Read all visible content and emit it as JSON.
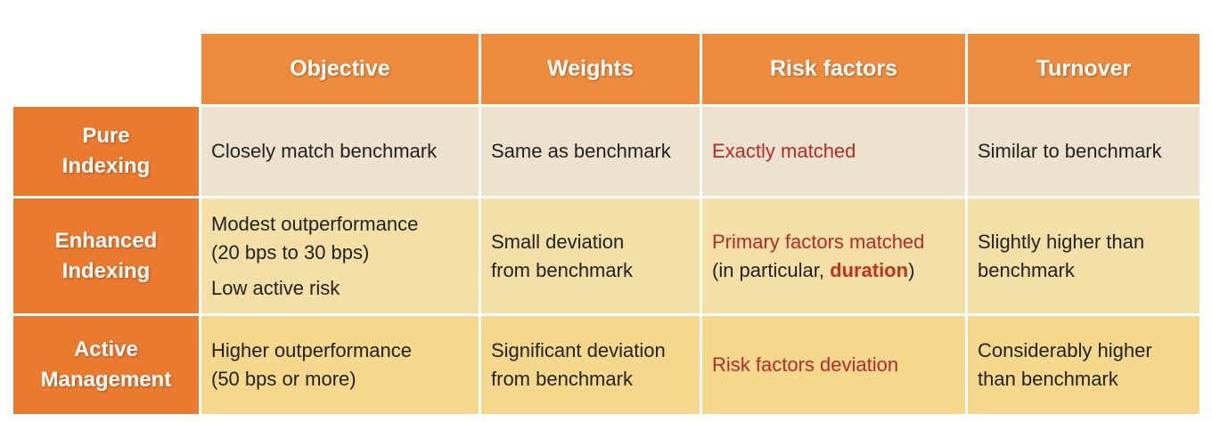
{
  "table": {
    "columns": [
      "Objective",
      "Weights",
      "Risk factors",
      "Turnover"
    ],
    "rows": [
      {
        "label_line1": "Pure",
        "label_line2": "Indexing",
        "objective": "Closely match benchmark",
        "weights": "Same as benchmark",
        "risk_factors": "Exactly matched",
        "turnover": "Similar to benchmark"
      },
      {
        "label_line1": "Enhanced",
        "label_line2": "Indexing",
        "objective_line1": "Modest outperformance",
        "objective_line2": "(20 bps to 30 bps)",
        "objective_line3": "Low active risk",
        "weights_line1": "Small deviation",
        "weights_line2": "from benchmark",
        "risk_factors_line1": "Primary factors matched",
        "risk_factors_line2_pre": "(in particular, ",
        "risk_factors_line2_emph": "duration",
        "risk_factors_line2_post": ")",
        "turnover_line1": "Slightly higher than",
        "turnover_line2": "benchmark"
      },
      {
        "label_line1": "Active",
        "label_line2": "Management",
        "objective_line1": "Higher outperformance",
        "objective_line2": "(50 bps or more)",
        "weights_line1": "Significant deviation",
        "weights_line2": "from benchmark",
        "risk_factors": "Risk factors deviation",
        "turnover_line1": "Considerably higher",
        "turnover_line2": "than benchmark"
      }
    ]
  },
  "colors": {
    "header_bg": "#ed8b3f",
    "row_header_bg": "#ea7a30",
    "row1_bg": "#ece2cd",
    "row2_bg": "#f4dfa6",
    "row3_bg": "#f5d88e",
    "risk_text": "#b72a2a"
  }
}
